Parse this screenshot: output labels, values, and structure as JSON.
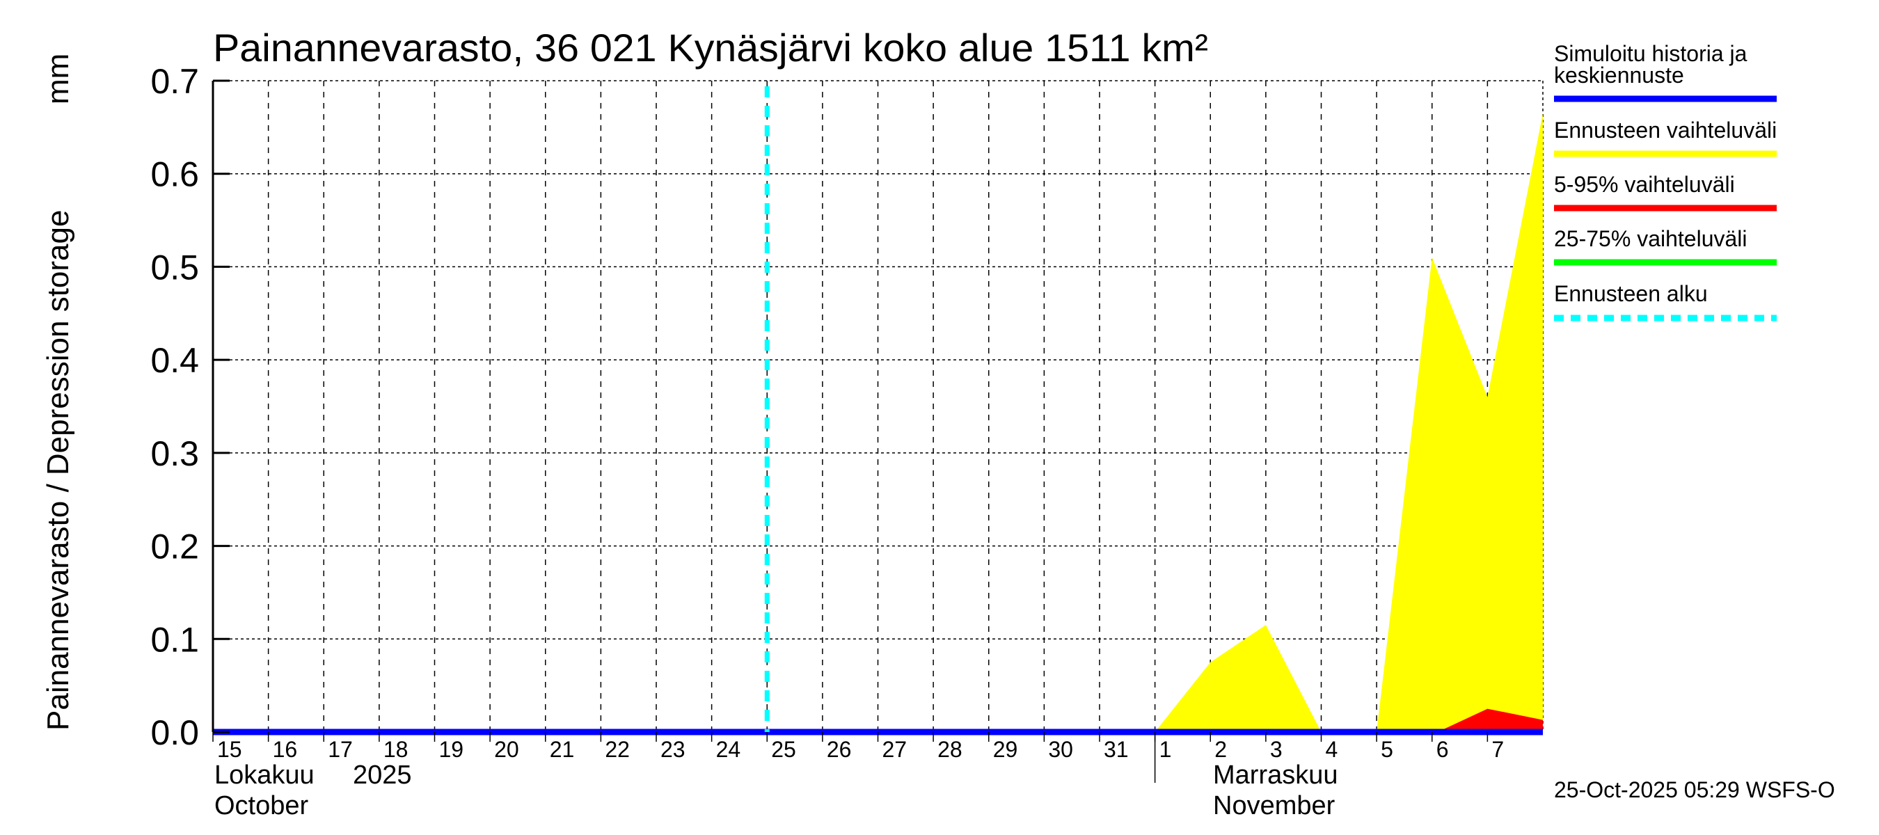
{
  "chart_data": {
    "type": "area",
    "title": "Painannevarasto, 36 021 Kynäsjärvi koko alue 1511 km²",
    "ylabel": "Painannevarasto / Depression storage",
    "yunit": "mm",
    "ylim": [
      0,
      0.7
    ],
    "yticks": [
      "0.0",
      "0.1",
      "0.2",
      "0.3",
      "0.4",
      "0.5",
      "0.6",
      "0.7"
    ],
    "ytick_values": [
      0,
      0.1,
      0.2,
      0.3,
      0.4,
      0.5,
      0.6,
      0.7
    ],
    "xlim_days": [
      0,
      24
    ],
    "x_axis_note": "days since 15 Oct 2025",
    "xticks": [
      "15",
      "16",
      "17",
      "18",
      "19",
      "20",
      "21",
      "22",
      "23",
      "24",
      "25",
      "26",
      "27",
      "28",
      "29",
      "30",
      "31",
      "1",
      "2",
      "3",
      "4",
      "5",
      "6",
      "7"
    ],
    "month_labels": [
      {
        "fi": "Lokakuu",
        "year": "2025",
        "en": "October",
        "day": 0
      },
      {
        "fi": "Marraskuu",
        "en": "November",
        "day": 17
      }
    ],
    "grid": true,
    "forecast_start_day": 10,
    "series": [
      {
        "name": "Ennusteen vaihteluväli",
        "color": "#ffff00",
        "x": [
          17,
          18,
          19,
          20,
          21,
          22,
          23,
          24
        ],
        "upper": [
          0,
          0.075,
          0.115,
          0,
          0,
          0.51,
          0.36,
          0.665
        ],
        "lower": [
          0,
          0,
          0,
          0,
          0,
          0,
          0,
          0
        ]
      },
      {
        "name": "5-95% vaihteluväli",
        "color": "#ff0000",
        "x": [
          22.1,
          23,
          24
        ],
        "upper": [
          0,
          0.025,
          0.013
        ],
        "lower": [
          0,
          0,
          0
        ]
      },
      {
        "name": "Simuloitu historia ja keskiennuste",
        "color": "#0000ff",
        "x": [
          0,
          24
        ],
        "y": [
          0,
          0
        ]
      }
    ],
    "legend": {
      "placement": "right",
      "items": [
        {
          "label": [
            "Simuloitu historia ja",
            "keskiennuste"
          ],
          "color": "#0000ff",
          "style": "solid"
        },
        {
          "label": [
            "Ennusteen vaihteluväli"
          ],
          "color": "#ffff00",
          "style": "solid"
        },
        {
          "label": [
            "5-95% vaihteluväli"
          ],
          "color": "#ff0000",
          "style": "solid"
        },
        {
          "label": [
            "25-75% vaihteluväli"
          ],
          "color": "#00ff00",
          "style": "solid"
        },
        {
          "label": [
            "Ennusteen alku"
          ],
          "color": "#00ffff",
          "style": "dashed"
        }
      ]
    },
    "timestamp": "25-Oct-2025 05:29 WSFS-O"
  }
}
